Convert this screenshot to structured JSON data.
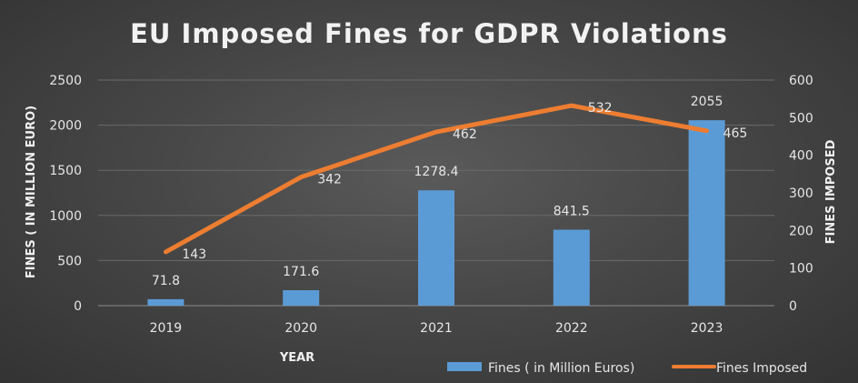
{
  "chart_data": {
    "type": "bar",
    "title": "EU Imposed Fines for GDPR Violations",
    "xlabel": "YEAR",
    "ylabel": "FINES ( IN MILLION EURO)",
    "y2label": "FINES IMPOSED",
    "categories": [
      "2019",
      "2020",
      "2021",
      "2022",
      "2023"
    ],
    "ylim": [
      0,
      2500
    ],
    "y2lim": [
      0,
      600
    ],
    "yticks": [
      0,
      500,
      1000,
      1500,
      2000,
      2500
    ],
    "y2ticks": [
      0,
      100,
      200,
      300,
      400,
      500,
      600
    ],
    "grid": true,
    "legend_position": "bottom-right",
    "series": [
      {
        "name": "Fines ( in Million Euros)",
        "type": "bar",
        "axis": "left",
        "color": "#5b9bd5",
        "values": [
          71.8,
          171.6,
          1278.4,
          841.5,
          2055
        ],
        "labels": [
          "71.8",
          "171.6",
          "1278.4",
          "841.5",
          "2055"
        ]
      },
      {
        "name": "Fines Imposed",
        "type": "line",
        "axis": "right",
        "color": "#ed7d31",
        "values": [
          143,
          342,
          462,
          532,
          465
        ],
        "labels": [
          "143",
          "342",
          "462",
          "532",
          "465"
        ]
      }
    ]
  }
}
